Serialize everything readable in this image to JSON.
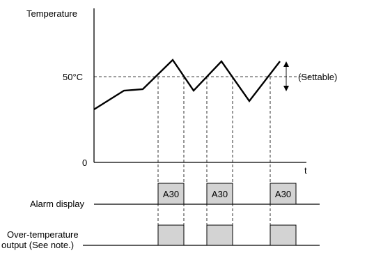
{
  "y_axis_label": "Temperature",
  "x_axis_label": "t",
  "threshold_label": "50°C",
  "zero_label": "0",
  "settable_label": "(Settable)",
  "rows": {
    "alarm_label": "Alarm display",
    "output_label_line1": "Over-temperature",
    "output_label_line2": "output (See note.)"
  },
  "alarm_code": "A30",
  "colors": {
    "line": "#000000",
    "box_fill": "#d3d3d3"
  }
}
